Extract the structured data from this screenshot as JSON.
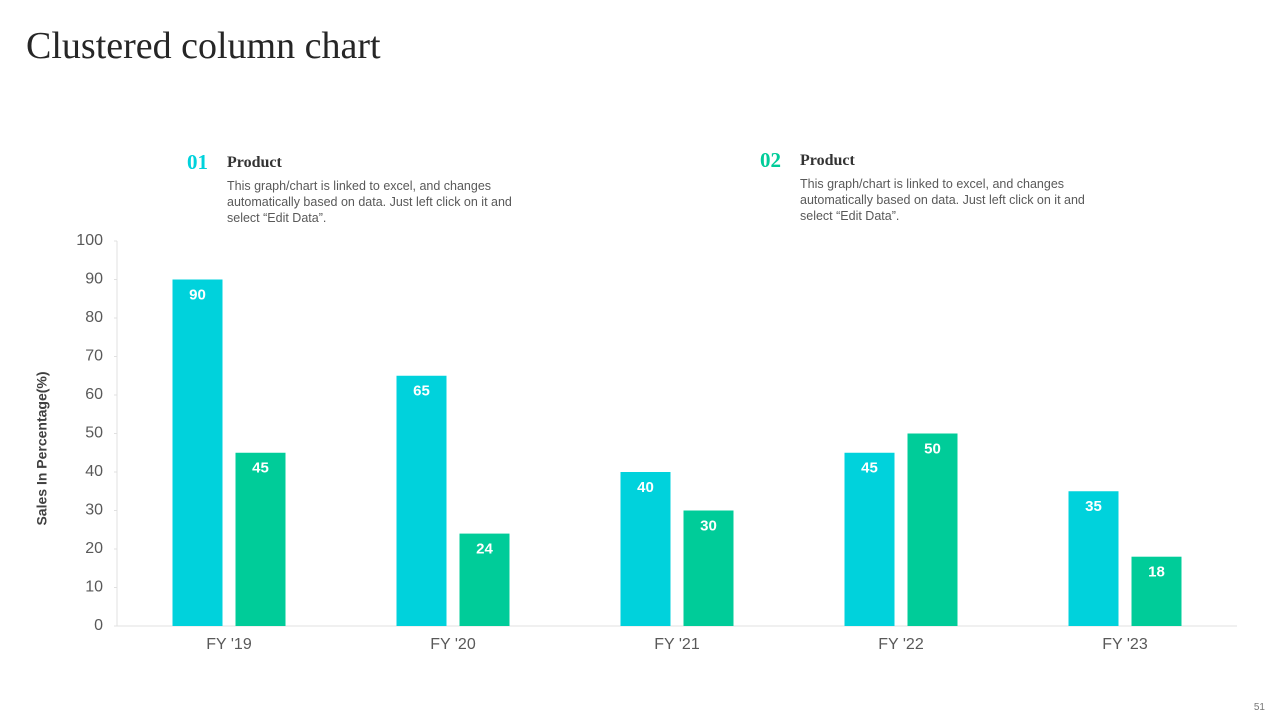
{
  "chart_data": {
    "type": "bar",
    "title": "Clustered column chart",
    "categories": [
      "FY '19",
      "FY '20",
      "FY '21",
      "FY '22",
      "FY '23"
    ],
    "series": [
      {
        "name": "Product",
        "color": "#00d2dc",
        "values": [
          90,
          65,
          40,
          45,
          35
        ]
      },
      {
        "name": "Product",
        "color": "#00cc99",
        "values": [
          45,
          24,
          30,
          50,
          18
        ]
      }
    ],
    "legend_items": [
      {
        "number": "01",
        "description": "This graph/chart is linked to excel, and changes automatically based on data. Just left click on it and select “Edit Data”."
      },
      {
        "number": "02",
        "description": "This graph/chart is linked to excel, and changes automatically based on data. Just left click on it and select “Edit Data”."
      }
    ],
    "ylabel": "Sales In Percentage(%)",
    "ylim": [
      0,
      100
    ],
    "yticks": [
      0,
      10,
      20,
      30,
      40,
      50,
      60,
      70,
      80,
      90,
      100
    ],
    "grid": false
  },
  "slide": {
    "page_number": "51"
  }
}
